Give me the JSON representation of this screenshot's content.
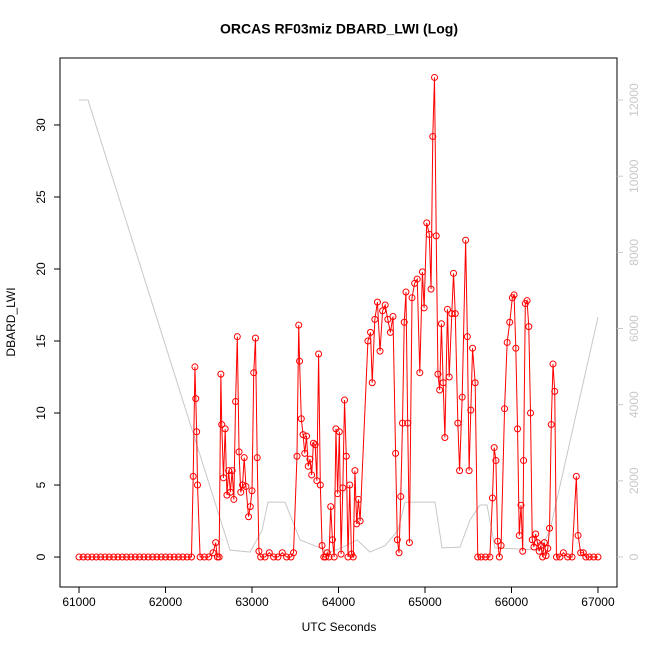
{
  "chart_data": {
    "type": "line",
    "title": "ORCAS RF03miz DBARD_LWI (Log)",
    "xlabel": "UTC Seconds",
    "ylabel": "DBARD_LWI",
    "xlim": [
      60780,
      67220
    ],
    "xticks": [
      61000,
      62000,
      63000,
      64000,
      65000,
      66000,
      67000
    ],
    "ylim": [
      -2.08,
      34.65
    ],
    "yticks": [
      0,
      5,
      10,
      15,
      20,
      25,
      30
    ],
    "y2lim": [
      -788,
      13104
    ],
    "y2ticks": [
      0,
      2000,
      4000,
      6000,
      8000,
      10000,
      12000
    ],
    "series": [
      {
        "color": "#ff0000",
        "x": [
          61000,
          61050,
          61100,
          61150,
          61200,
          61250,
          61300,
          61350,
          61400,
          61450,
          61500,
          61550,
          61600,
          61650,
          61700,
          61750,
          61800,
          61850,
          61900,
          61950,
          62000,
          62050,
          62100,
          62150,
          62200,
          62250,
          62300,
          62320,
          62340,
          62350,
          62360,
          62370,
          62400,
          62450,
          62500,
          62550,
          62580,
          62600,
          62620,
          62640,
          62650,
          62670,
          62690,
          62710,
          62730,
          62750,
          62770,
          62790,
          62810,
          62830,
          62850,
          62870,
          62890,
          62910,
          62930,
          62960,
          62980,
          63000,
          63020,
          63040,
          63060,
          63080,
          63100,
          63150,
          63200,
          63250,
          63300,
          63350,
          63400,
          63450,
          63480,
          63520,
          63540,
          63550,
          63570,
          63590,
          63610,
          63630,
          63650,
          63670,
          63690,
          63710,
          63730,
          63750,
          63770,
          63790,
          63810,
          63830,
          63850,
          63870,
          63890,
          63910,
          63930,
          63950,
          63970,
          63990,
          64010,
          64030,
          64050,
          64070,
          64090,
          64110,
          64130,
          64150,
          64170,
          64190,
          64210,
          64230,
          64250,
          64340,
          64370,
          64390,
          64420,
          64450,
          64480,
          64510,
          64540,
          64570,
          64600,
          64630,
          64660,
          64680,
          64700,
          64720,
          64740,
          64760,
          64780,
          64800,
          64820,
          64850,
          64880,
          64910,
          64940,
          64970,
          64990,
          65020,
          65050,
          65070,
          65090,
          65110,
          65130,
          65150,
          65170,
          65190,
          65210,
          65230,
          65260,
          65280,
          65310,
          65330,
          65350,
          65380,
          65400,
          65430,
          65470,
          65490,
          65510,
          65530,
          65550,
          65580,
          65610,
          65650,
          65700,
          65750,
          65780,
          65800,
          65820,
          65840,
          65860,
          65880,
          65920,
          65950,
          65980,
          66010,
          66030,
          66050,
          66070,
          66090,
          66110,
          66130,
          66140,
          66160,
          66180,
          66200,
          66220,
          66240,
          66260,
          66280,
          66300,
          66320,
          66340,
          66360,
          66380,
          66400,
          66420,
          66440,
          66460,
          66480,
          66500,
          66520,
          66560,
          66600,
          66650,
          66700,
          66750,
          66770,
          66800,
          66830,
          66860,
          66900,
          66950,
          67000
        ],
        "values": [
          0,
          0,
          0,
          0,
          0,
          0,
          0,
          0,
          0,
          0,
          0,
          0,
          0,
          0,
          0,
          0,
          0,
          0,
          0,
          0,
          0,
          0,
          0,
          0,
          0,
          0,
          0,
          5.6,
          13.2,
          11,
          8.7,
          5,
          0,
          0,
          0,
          0.3,
          1,
          0,
          0,
          12.7,
          9.2,
          5.5,
          8.9,
          4.3,
          6,
          4.5,
          6,
          4,
          10.8,
          15.3,
          7.3,
          4.5,
          5,
          6.9,
          4.9,
          2.8,
          3.5,
          4.6,
          12.8,
          15.2,
          6.9,
          0.4,
          0,
          0,
          0.3,
          0,
          0,
          0.3,
          0,
          0,
          0.3,
          7,
          16.1,
          13.6,
          9.6,
          8.5,
          7.2,
          8.4,
          6.3,
          6.8,
          5.7,
          7.9,
          7.8,
          5.3,
          14.1,
          5,
          0.8,
          0,
          0,
          0.3,
          0,
          3.5,
          1.2,
          0,
          8.9,
          4.4,
          8.7,
          0.2,
          4.8,
          10.9,
          7,
          0,
          5,
          0.2,
          0,
          6,
          2.3,
          4,
          2.5,
          15,
          15.6,
          12.1,
          16.5,
          17.7,
          14.3,
          17.1,
          17.5,
          16.5,
          15.6,
          16.7,
          7.2,
          1.2,
          0.3,
          4.2,
          9.3,
          16.3,
          18.4,
          9.3,
          1,
          18,
          19,
          19.3,
          12.8,
          19.8,
          17.3,
          23.2,
          22.4,
          18.6,
          29.2,
          33.3,
          22.3,
          12.7,
          11.6,
          16.2,
          12.1,
          8.3,
          17.2,
          12.5,
          16.9,
          19.7,
          16.9,
          9.3,
          6,
          11.1,
          22,
          15.3,
          6,
          10.2,
          14.5,
          12.1,
          0,
          0,
          0,
          0,
          4.1,
          7.6,
          6.7,
          1.1,
          0,
          0.8,
          10.3,
          14.9,
          16.3,
          18,
          18.2,
          14.5,
          8.9,
          1.5,
          3.6,
          0.4,
          6.7,
          17.6,
          17.8,
          16,
          10,
          1.2,
          0.7,
          1.6,
          1,
          0.4,
          0.8,
          0,
          1,
          0.1,
          0.6,
          2,
          9.2,
          13.4,
          11.5,
          0,
          0,
          0.3,
          0,
          0,
          5.6,
          1.5,
          0.3,
          0.3,
          0,
          0,
          0,
          0
        ]
      },
      {
        "color": "#c8c8c8",
        "axis": "y2",
        "x": [
          61000,
          61104,
          62746,
          62977,
          63116,
          63185,
          63382,
          63555,
          63763,
          63902,
          64040,
          64214,
          64364,
          64538,
          64688,
          64769,
          65116,
          65197,
          65405,
          65520,
          65636,
          65717,
          65809,
          66329,
          66445,
          67000
        ],
        "values": [
          12000,
          12000,
          180,
          130,
          700,
          1440,
          1440,
          450,
          260,
          130,
          240,
          450,
          130,
          300,
          700,
          1440,
          1440,
          240,
          260,
          970,
          1365,
          1365,
          240,
          180,
          700,
          6300
        ]
      }
    ]
  }
}
